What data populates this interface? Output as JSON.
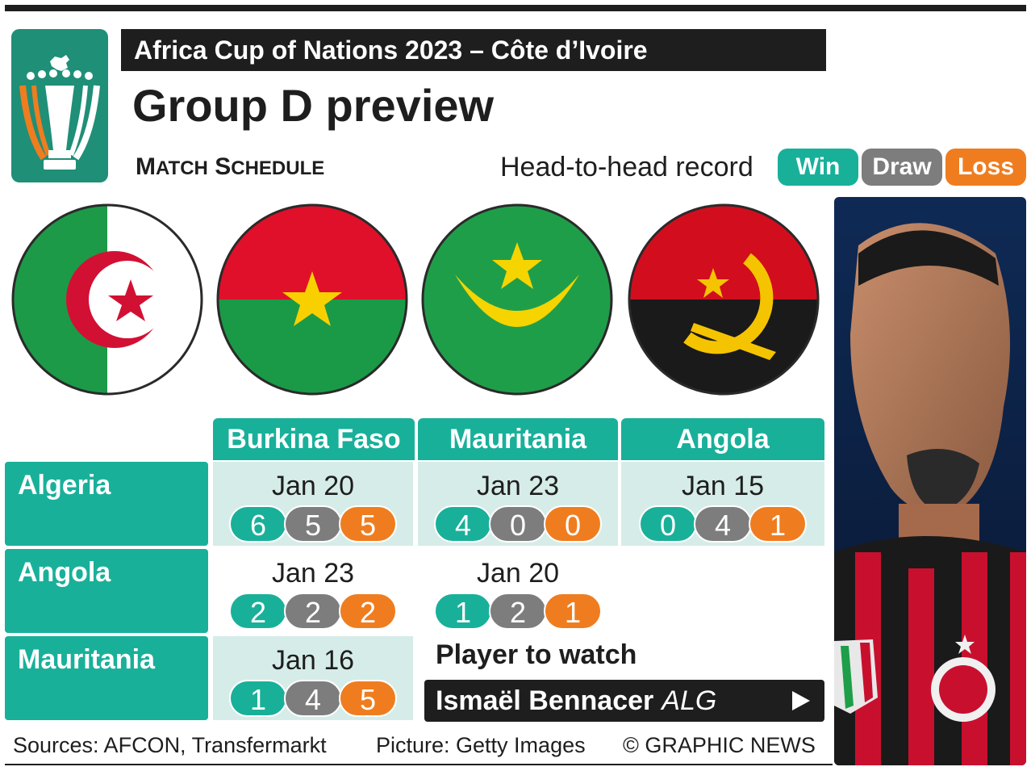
{
  "header": {
    "banner": "Africa Cup of Nations 2023 – Côte d’Ivoire",
    "title": "Group D preview",
    "subtitle_first": "M",
    "subtitle_first_rest": "ATCH",
    "subtitle_second": "S",
    "subtitle_second_rest": "CHEDULE"
  },
  "legend": {
    "label": "Head-to-head record",
    "win": "Win",
    "draw": "Draw",
    "loss": "Loss"
  },
  "colors": {
    "teal": "#19b09a",
    "grey": "#7d7d7d",
    "orange": "#ef7d1f",
    "dark": "#1e1e1e"
  },
  "flags": [
    "algeria-flag",
    "burkina-faso-flag",
    "mauritania-flag",
    "angola-flag"
  ],
  "columns": [
    "Burkina Faso",
    "Mauritania",
    "Angola"
  ],
  "rows": [
    {
      "team": "Algeria",
      "cells": [
        {
          "date": "Jan 20",
          "win": "6",
          "draw": "5",
          "loss": "5"
        },
        {
          "date": "Jan 23",
          "win": "4",
          "draw": "0",
          "loss": "0"
        },
        {
          "date": "Jan 15",
          "win": "0",
          "draw": "4",
          "loss": "1"
        }
      ]
    },
    {
      "team": "Angola",
      "cells": [
        {
          "date": "Jan 23",
          "win": "2",
          "draw": "2",
          "loss": "2"
        },
        {
          "date": "Jan 20",
          "win": "1",
          "draw": "2",
          "loss": "1"
        }
      ]
    },
    {
      "team": "Mauritania",
      "cells": [
        {
          "date": "Jan 16",
          "win": "1",
          "draw": "4",
          "loss": "5"
        }
      ]
    }
  ],
  "player": {
    "label": "Player to watch",
    "name": "Ismaël Bennacer",
    "nationality": "ALG"
  },
  "footer": {
    "sources": "Sources: AFCON, Transfermarkt",
    "picture": "Picture: Getty Images",
    "credit": "© GRAPHIC NEWS"
  }
}
